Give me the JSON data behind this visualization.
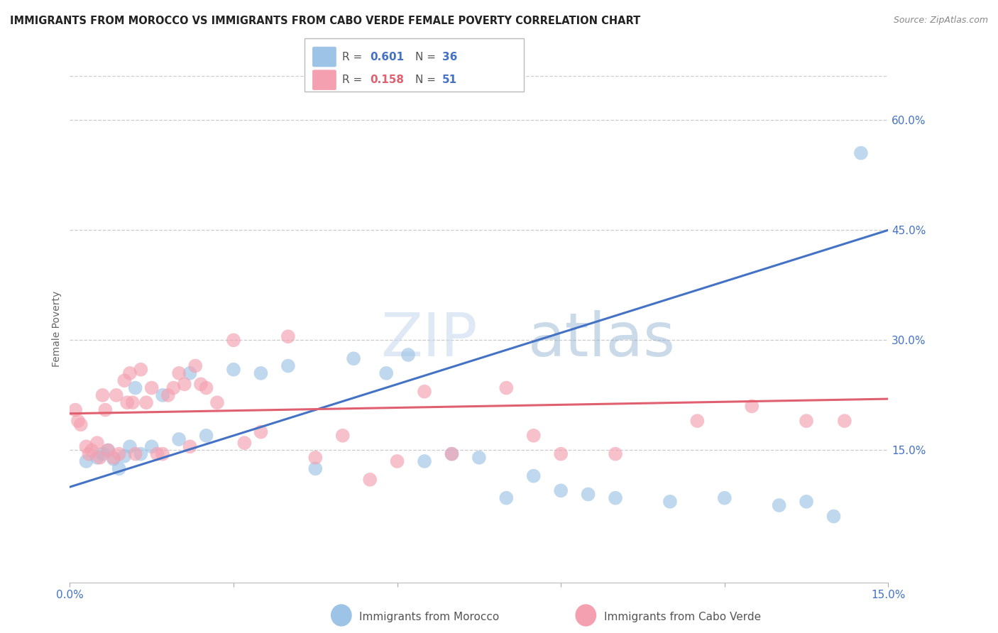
{
  "title": "IMMIGRANTS FROM MOROCCO VS IMMIGRANTS FROM CABO VERDE FEMALE POVERTY CORRELATION CHART",
  "source": "Source: ZipAtlas.com",
  "ylabel": "Female Poverty",
  "xlim": [
    0.0,
    15.0
  ],
  "ylim": [
    -3.0,
    66.0
  ],
  "yticks": [
    15.0,
    30.0,
    45.0,
    60.0
  ],
  "ytick_labels": [
    "15.0%",
    "30.0%",
    "45.0%",
    "60.0%"
  ],
  "legend_r1": "0.601",
  "legend_n1": "36",
  "legend_r2": "0.158",
  "legend_n2": "51",
  "color_morocco": "#9DC3E6",
  "color_cabo": "#F4A0B0",
  "color_morocco_line": "#4472C4",
  "color_cabo_line": "#E06070",
  "color_axis_text": "#4472C4",
  "color_grid": "#CCCCCC",
  "color_title": "#222222",
  "watermark_zip": "ZIP",
  "watermark_atlas": "atlas",
  "legend_label1": "Immigrants from Morocco",
  "legend_label2": "Immigrants from Cabo Verde",
  "morocco_x": [
    0.3,
    0.5,
    0.6,
    0.7,
    0.8,
    0.9,
    1.0,
    1.1,
    1.2,
    1.3,
    1.5,
    1.7,
    2.0,
    2.2,
    2.5,
    3.0,
    3.5,
    4.0,
    4.5,
    5.2,
    5.8,
    6.2,
    6.5,
    7.0,
    7.5,
    8.0,
    8.5,
    9.0,
    9.5,
    10.0,
    11.0,
    12.0,
    13.0,
    13.5,
    14.0,
    14.5
  ],
  "morocco_y": [
    13.5,
    14.0,
    14.5,
    15.0,
    13.8,
    12.5,
    14.2,
    15.5,
    23.5,
    14.5,
    15.5,
    22.5,
    16.5,
    25.5,
    17.0,
    26.0,
    25.5,
    26.5,
    12.5,
    27.5,
    25.5,
    28.0,
    13.5,
    14.5,
    14.0,
    8.5,
    11.5,
    9.5,
    9.0,
    8.5,
    8.0,
    8.5,
    7.5,
    8.0,
    6.0,
    55.5
  ],
  "cabo_x": [
    0.1,
    0.15,
    0.2,
    0.3,
    0.35,
    0.4,
    0.5,
    0.55,
    0.6,
    0.65,
    0.7,
    0.8,
    0.85,
    0.9,
    1.0,
    1.05,
    1.1,
    1.15,
    1.2,
    1.3,
    1.4,
    1.5,
    1.6,
    1.7,
    1.8,
    1.9,
    2.0,
    2.1,
    2.2,
    2.3,
    2.4,
    2.5,
    2.7,
    3.0,
    3.2,
    3.5,
    4.0,
    4.5,
    5.0,
    5.5,
    6.0,
    7.0,
    8.0,
    9.0,
    10.0,
    11.5,
    12.5,
    13.5,
    14.2,
    6.5,
    8.5
  ],
  "cabo_y": [
    20.5,
    19.0,
    18.5,
    15.5,
    14.5,
    15.0,
    16.0,
    14.0,
    22.5,
    20.5,
    15.0,
    14.0,
    22.5,
    14.5,
    24.5,
    21.5,
    25.5,
    21.5,
    14.5,
    26.0,
    21.5,
    23.5,
    14.5,
    14.5,
    22.5,
    23.5,
    25.5,
    24.0,
    15.5,
    26.5,
    24.0,
    23.5,
    21.5,
    30.0,
    16.0,
    17.5,
    30.5,
    14.0,
    17.0,
    11.0,
    13.5,
    14.5,
    23.5,
    14.5,
    14.5,
    19.0,
    21.0,
    19.0,
    19.0,
    23.0,
    17.0
  ]
}
